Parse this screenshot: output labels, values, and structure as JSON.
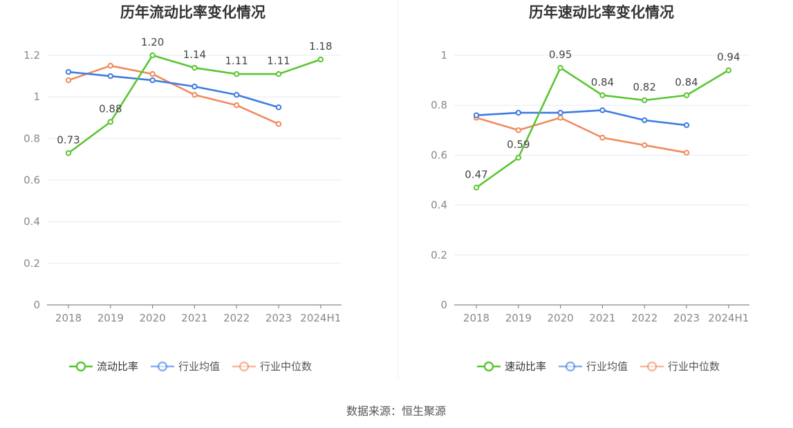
{
  "source_text": "数据来源：恒生聚源",
  "chart_data": [
    {
      "type": "line",
      "title": "历年流动比率变化情况",
      "categories": [
        "2018",
        "2019",
        "2020",
        "2021",
        "2022",
        "2023",
        "2024H1"
      ],
      "ylim": [
        0,
        1.2
      ],
      "yticks": [
        0,
        0.2,
        0.4,
        0.6,
        0.8,
        1,
        1.2
      ],
      "ytick_labels": [
        "0",
        "0.2",
        "0.4",
        "0.6",
        "0.8",
        "1",
        "1.2"
      ],
      "series": [
        {
          "name": "流动比率",
          "color": "#5ac531",
          "values": [
            0.73,
            0.88,
            1.2,
            1.14,
            1.11,
            1.11,
            1.18
          ],
          "labels": [
            "0.73",
            "0.88",
            "1.20",
            "1.14",
            "1.11",
            "1.11",
            "1.18"
          ]
        },
        {
          "name": "行业均值",
          "color": "#3d7be0",
          "values": [
            1.12,
            1.1,
            1.08,
            1.05,
            1.01,
            0.95,
            null
          ]
        },
        {
          "name": "行业中位数",
          "color": "#f08a5d",
          "values": [
            1.08,
            1.15,
            1.11,
            1.01,
            0.96,
            0.87,
            null
          ]
        }
      ]
    },
    {
      "type": "line",
      "title": "历年速动比率变化情况",
      "categories": [
        "2018",
        "2019",
        "2020",
        "2021",
        "2022",
        "2023",
        "2024H1"
      ],
      "ylim": [
        0,
        1.0
      ],
      "yticks": [
        0,
        0.2,
        0.4,
        0.6,
        0.8,
        1
      ],
      "ytick_labels": [
        "0",
        "0.2",
        "0.4",
        "0.6",
        "0.8",
        "1"
      ],
      "series": [
        {
          "name": "速动比率",
          "color": "#5ac531",
          "values": [
            0.47,
            0.59,
            0.95,
            0.84,
            0.82,
            0.84,
            0.94
          ],
          "labels": [
            "0.47",
            "0.59",
            "0.95",
            "0.84",
            "0.82",
            "0.84",
            "0.94"
          ]
        },
        {
          "name": "行业均值",
          "color": "#3d7be0",
          "values": [
            0.76,
            0.77,
            0.77,
            0.78,
            0.74,
            0.72,
            null
          ]
        },
        {
          "name": "行业中位数",
          "color": "#f08a5d",
          "values": [
            0.75,
            0.7,
            0.75,
            0.67,
            0.64,
            0.61,
            null
          ]
        }
      ]
    }
  ]
}
